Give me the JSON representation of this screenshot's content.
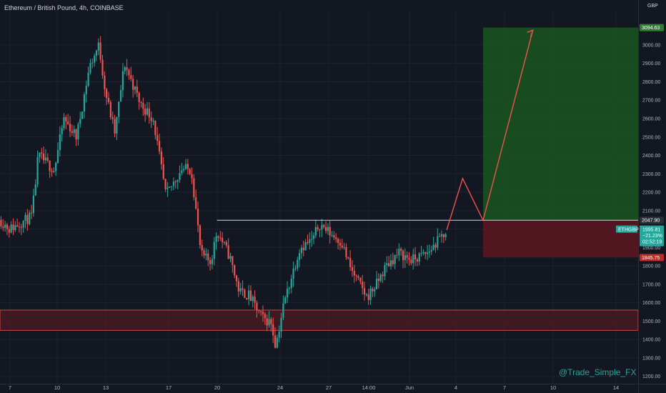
{
  "header": {
    "title": "Ethereum / British Pound, 4h, COINBASE",
    "currency": "GBP",
    "watermark": "@Trade_Simple_FX"
  },
  "colors": {
    "background": "#131722",
    "grid": "#1e222d",
    "up": "#26a69a",
    "down": "#ef5350",
    "profit_zone": "#1b5e20",
    "loss_zone": "#5d1620",
    "support_zone": "#5c1a22",
    "projection": "#ef5350"
  },
  "chart_data": {
    "type": "candlestick",
    "title": "Ethereum / British Pound, 4h, COINBASE",
    "symbol": "ETHGBP",
    "interval": "4h",
    "exchange": "COINBASE",
    "currency": "GBP",
    "y_axis": {
      "ticks": [
        1200,
        1300,
        1400,
        1500,
        1600,
        1700,
        1800,
        1900,
        2000,
        2100,
        2200,
        2300,
        2400,
        2500,
        2600,
        2700,
        2800,
        2900,
        3000
      ],
      "ylim": [
        1160,
        3190
      ]
    },
    "x_axis": {
      "labels": [
        "7",
        "10",
        "13",
        "17",
        "20",
        "24",
        "27",
        "14:00",
        "Jun",
        "4",
        "7",
        "10",
        "14"
      ]
    },
    "grid": true,
    "price_path": [
      [
        0,
        2050
      ],
      [
        0.015,
        2000
      ],
      [
        0.05,
        2070
      ],
      [
        0.06,
        2400
      ],
      [
        0.085,
        2320
      ],
      [
        0.1,
        2600
      ],
      [
        0.12,
        2500
      ],
      [
        0.14,
        2880
      ],
      [
        0.155,
        3000
      ],
      [
        0.165,
        2750
      ],
      [
        0.18,
        2520
      ],
      [
        0.195,
        2900
      ],
      [
        0.22,
        2680
      ],
      [
        0.24,
        2600
      ],
      [
        0.26,
        2180
      ],
      [
        0.285,
        2330
      ],
      [
        0.3,
        2320
      ],
      [
        0.315,
        1860
      ],
      [
        0.33,
        1820
      ],
      [
        0.34,
        1990
      ],
      [
        0.36,
        1850
      ],
      [
        0.375,
        1660
      ],
      [
        0.39,
        1640
      ],
      [
        0.41,
        1520
      ],
      [
        0.425,
        1490
      ],
      [
        0.432,
        1365
      ],
      [
        0.445,
        1600
      ],
      [
        0.47,
        1900
      ],
      [
        0.49,
        1940
      ],
      [
        0.5,
        2030
      ],
      [
        0.52,
        1970
      ],
      [
        0.535,
        1930
      ],
      [
        0.55,
        1780
      ],
      [
        0.575,
        1630
      ],
      [
        0.59,
        1700
      ],
      [
        0.605,
        1800
      ],
      [
        0.625,
        1870
      ],
      [
        0.645,
        1830
      ],
      [
        0.67,
        1870
      ],
      [
        0.69,
        1950
      ],
      [
        0.7,
        1995
      ]
    ],
    "annotations": {
      "resistance_line": 2047.9,
      "support_zone": [
        1450,
        1560
      ],
      "target": 3094.63,
      "stop": 1845.75,
      "entry": 2047.9,
      "projection_path": [
        {
          "x": 0.7,
          "y": 1995
        },
        {
          "x": 0.725,
          "y": 2275
        },
        {
          "x": 0.757,
          "y": 2047.9
        },
        {
          "x": 0.835,
          "y": 3080
        }
      ]
    },
    "last_price": {
      "symbol": "ETHGBP",
      "price": "1995.81",
      "change": "−21.23%",
      "countdown": "02:52:19"
    },
    "price_labels": {
      "target": "3094.63",
      "entry": "2047.90",
      "stop": "1845.75",
      "partial_1900": "1900.00",
      "partial_3100": "3100.00"
    }
  }
}
